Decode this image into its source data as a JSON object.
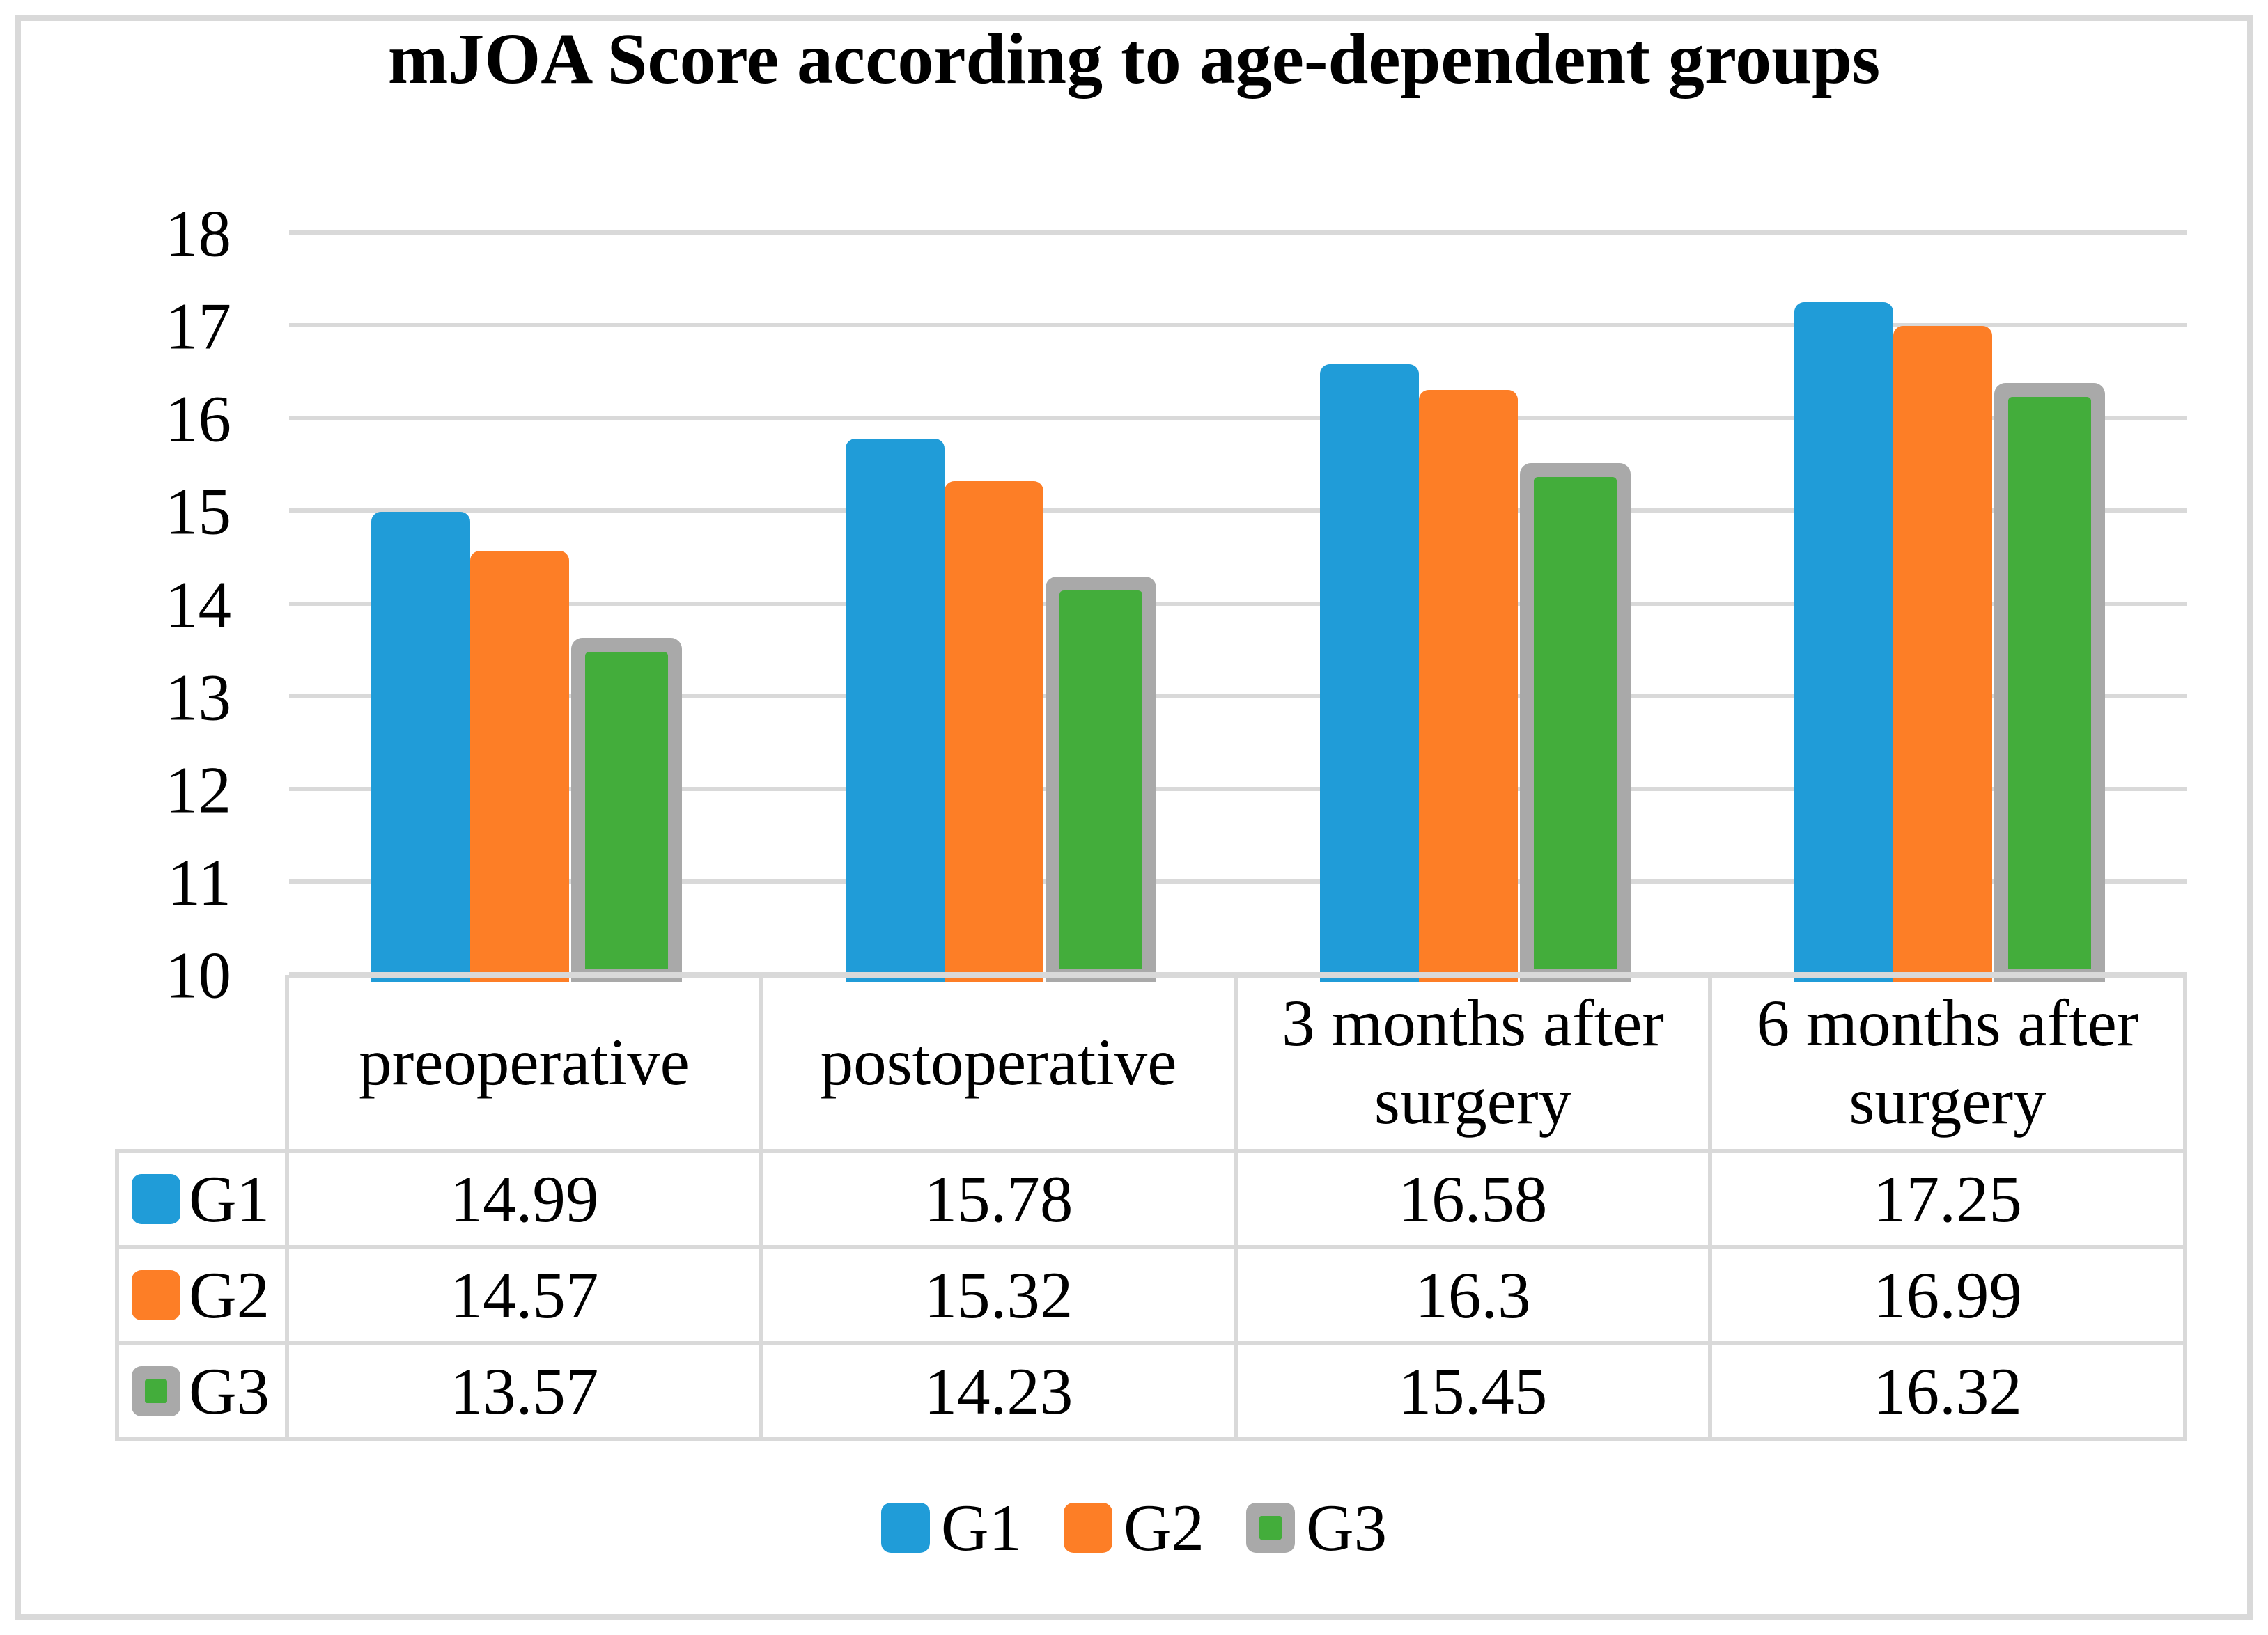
{
  "chart_data": {
    "type": "bar",
    "title": "mJOA Score according to age-dependent groups",
    "categories": [
      "preoperative",
      "postoperative",
      "3 months after surgery",
      "6 months after surgery"
    ],
    "series": [
      {
        "name": "G1",
        "color": "#209CD8",
        "values": [
          14.99,
          15.78,
          16.58,
          17.25
        ]
      },
      {
        "name": "G2",
        "color": "#FD7E26",
        "values": [
          14.57,
          15.32,
          16.3,
          16.99
        ]
      },
      {
        "name": "G3",
        "color": "#43AD3B",
        "outline_color": "#A9A9A9",
        "values": [
          13.57,
          14.23,
          15.45,
          16.32
        ]
      }
    ],
    "ylim": [
      10,
      18
    ],
    "yticks": [
      "18",
      "17",
      "16",
      "15",
      "14",
      "13",
      "12",
      "11",
      "10"
    ],
    "grid": "horizontal gridlines",
    "gridline_color": "#D9D9D9",
    "legend_position": "bottom",
    "data_table_shown": true
  },
  "table": {
    "values_display": [
      [
        "14.99",
        "15.78",
        "16.58",
        "17.25"
      ],
      [
        "14.57",
        "15.32",
        "16.3",
        "16.99"
      ],
      [
        "13.57",
        "14.23",
        "15.45",
        "16.32"
      ]
    ]
  }
}
